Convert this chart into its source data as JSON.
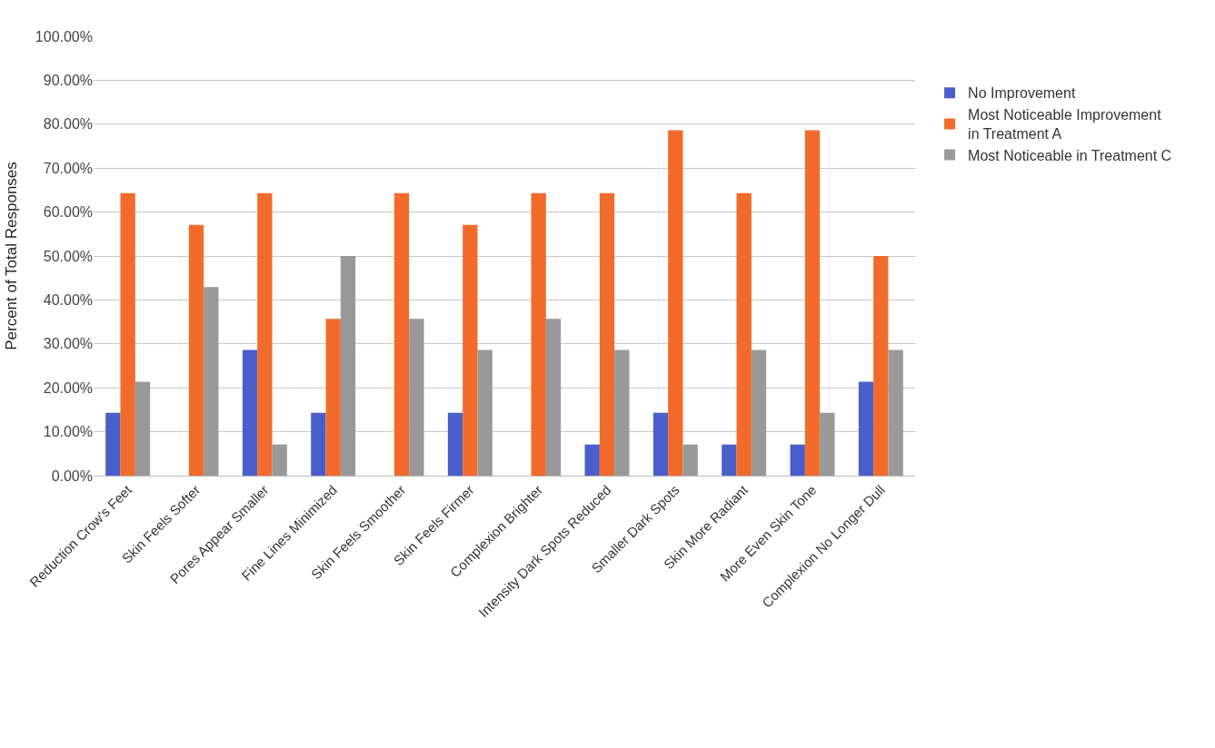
{
  "chart_data": {
    "type": "bar",
    "ylabel": "Percent of Total Responses",
    "categories": [
      "Reduction Crow's Feet",
      "Skin Feels Softer",
      "Pores Appear Smaller",
      "Fine Lines Minimized",
      "Skin Feels Smoother",
      "Skin Feels Firmer",
      "Complexion Brighter",
      "Intensity Dark Spots Reduced",
      "Smaller Dark Spots",
      "Skin More Radiant",
      "More Even Skin Tone",
      "Complexion No Longer Dull"
    ],
    "series": [
      {
        "name": "No Improvement",
        "color": "#4a5fc9",
        "values": [
          14.3,
          0,
          28.6,
          14.3,
          0,
          14.3,
          0,
          7.1,
          14.3,
          7.1,
          7.1,
          21.4
        ]
      },
      {
        "name": "Most Noticeable Improvement in Treatment A",
        "color": "#f26b2a",
        "values": [
          64.3,
          57.1,
          64.3,
          35.7,
          64.3,
          57.1,
          64.3,
          64.3,
          78.6,
          64.3,
          78.6,
          50
        ]
      },
      {
        "name": "Most Noticeable in Treatment C",
        "color": "#999999",
        "values": [
          21.4,
          42.9,
          7.1,
          50,
          35.7,
          28.6,
          35.7,
          28.6,
          7.1,
          28.6,
          14.3,
          28.6
        ]
      }
    ],
    "ylim": [
      0,
      100
    ],
    "yticks": [
      {
        "value": 0,
        "label": "0.00%"
      },
      {
        "value": 10,
        "label": "10.00%"
      },
      {
        "value": 20,
        "label": "20.00%"
      },
      {
        "value": 30,
        "label": "30.00%"
      },
      {
        "value": 40,
        "label": "40.00%"
      },
      {
        "value": 50,
        "label": "50.00%"
      },
      {
        "value": 60,
        "label": "60.00%"
      },
      {
        "value": 70,
        "label": "70.00%"
      },
      {
        "value": 80,
        "label": "80.00%"
      },
      {
        "value": 90,
        "label": "90.00%"
      },
      {
        "value": 100,
        "label": "100.00%"
      }
    ],
    "grid": "y",
    "legend": "right"
  }
}
